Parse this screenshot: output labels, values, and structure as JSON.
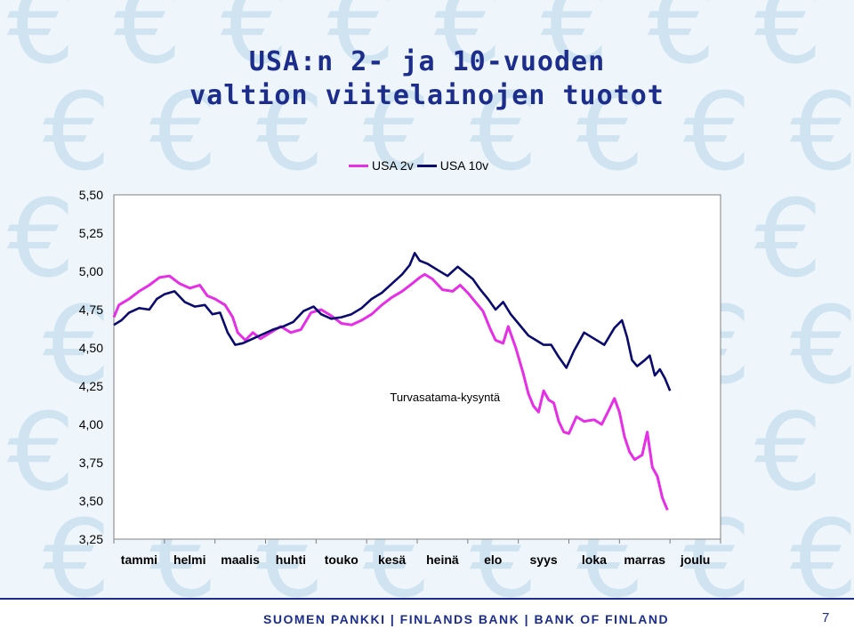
{
  "slide": {
    "title_line_1": "USA:n 2- ja 10-vuoden",
    "title_line_2": "valtion viitelainojen tuotot",
    "footer": "SUOMEN PANKKI | FINLANDS BANK | BANK OF FINLAND",
    "page_number": "7",
    "background_icon": "euro-sign-icon"
  },
  "colors": {
    "title": "#1c2d8c",
    "usa2v": "#e62ee6",
    "usa10v": "#0a0a6e",
    "background": "#eef6fb",
    "euro_pattern": "#cfe3f1"
  },
  "chart_data": {
    "type": "line",
    "title": "",
    "xlabel": "",
    "ylabel": "",
    "ylim": [
      3.25,
      5.5
    ],
    "yticks": [
      "5,50",
      "5,25",
      "5,00",
      "4,75",
      "4,50",
      "4,25",
      "4,00",
      "3,75",
      "3,50",
      "3,25"
    ],
    "ytick_values": [
      5.5,
      5.25,
      5.0,
      4.75,
      4.5,
      4.25,
      4.0,
      3.75,
      3.5,
      3.25
    ],
    "xlim": [
      0,
      12
    ],
    "categories": [
      "tammi",
      "helmi",
      "maalis",
      "huhti",
      "touko",
      "kesä",
      "heinä",
      "elo",
      "syys",
      "loka",
      "marras",
      "joulu"
    ],
    "legend_position": "top",
    "grid": false,
    "annotation": "Turvasatama-kysyntä",
    "series": [
      {
        "name": "USA 2v",
        "points": [
          [
            0.0,
            4.7
          ],
          [
            0.1,
            4.78
          ],
          [
            0.3,
            4.82
          ],
          [
            0.5,
            4.87
          ],
          [
            0.7,
            4.91
          ],
          [
            0.9,
            4.96
          ],
          [
            1.1,
            4.97
          ],
          [
            1.3,
            4.92
          ],
          [
            1.5,
            4.89
          ],
          [
            1.7,
            4.91
          ],
          [
            1.85,
            4.84
          ],
          [
            2.0,
            4.82
          ],
          [
            2.2,
            4.78
          ],
          [
            2.35,
            4.7
          ],
          [
            2.45,
            4.6
          ],
          [
            2.6,
            4.55
          ],
          [
            2.75,
            4.6
          ],
          [
            2.9,
            4.56
          ],
          [
            3.1,
            4.6
          ],
          [
            3.3,
            4.64
          ],
          [
            3.5,
            4.6
          ],
          [
            3.7,
            4.62
          ],
          [
            3.9,
            4.73
          ],
          [
            4.1,
            4.75
          ],
          [
            4.3,
            4.71
          ],
          [
            4.5,
            4.66
          ],
          [
            4.7,
            4.65
          ],
          [
            4.9,
            4.68
          ],
          [
            5.1,
            4.72
          ],
          [
            5.3,
            4.78
          ],
          [
            5.5,
            4.83
          ],
          [
            5.7,
            4.87
          ],
          [
            5.9,
            4.92
          ],
          [
            6.05,
            4.96
          ],
          [
            6.15,
            4.98
          ],
          [
            6.3,
            4.95
          ],
          [
            6.5,
            4.88
          ],
          [
            6.7,
            4.87
          ],
          [
            6.85,
            4.91
          ],
          [
            7.0,
            4.86
          ],
          [
            7.15,
            4.8
          ],
          [
            7.3,
            4.74
          ],
          [
            7.45,
            4.62
          ],
          [
            7.55,
            4.55
          ],
          [
            7.7,
            4.53
          ],
          [
            7.8,
            4.64
          ],
          [
            7.95,
            4.5
          ],
          [
            8.1,
            4.33
          ],
          [
            8.2,
            4.2
          ],
          [
            8.3,
            4.12
          ],
          [
            8.4,
            4.08
          ],
          [
            8.5,
            4.22
          ],
          [
            8.6,
            4.16
          ],
          [
            8.7,
            4.14
          ],
          [
            8.8,
            4.02
          ],
          [
            8.9,
            3.95
          ],
          [
            9.0,
            3.94
          ],
          [
            9.15,
            4.05
          ],
          [
            9.3,
            4.02
          ],
          [
            9.5,
            4.03
          ],
          [
            9.65,
            4.0
          ],
          [
            9.8,
            4.1
          ],
          [
            9.9,
            4.17
          ],
          [
            10.0,
            4.08
          ],
          [
            10.1,
            3.92
          ],
          [
            10.2,
            3.82
          ],
          [
            10.3,
            3.77
          ],
          [
            10.45,
            3.8
          ],
          [
            10.55,
            3.95
          ],
          [
            10.65,
            3.72
          ],
          [
            10.75,
            3.66
          ],
          [
            10.85,
            3.52
          ],
          [
            10.95,
            3.44
          ]
        ]
      },
      {
        "name": "USA 10v",
        "points": [
          [
            0.0,
            4.65
          ],
          [
            0.15,
            4.68
          ],
          [
            0.3,
            4.73
          ],
          [
            0.5,
            4.76
          ],
          [
            0.7,
            4.75
          ],
          [
            0.85,
            4.82
          ],
          [
            1.0,
            4.85
          ],
          [
            1.2,
            4.87
          ],
          [
            1.4,
            4.8
          ],
          [
            1.6,
            4.77
          ],
          [
            1.8,
            4.78
          ],
          [
            1.95,
            4.72
          ],
          [
            2.1,
            4.73
          ],
          [
            2.25,
            4.6
          ],
          [
            2.4,
            4.52
          ],
          [
            2.55,
            4.53
          ],
          [
            2.75,
            4.56
          ],
          [
            2.95,
            4.59
          ],
          [
            3.15,
            4.62
          ],
          [
            3.35,
            4.64
          ],
          [
            3.55,
            4.67
          ],
          [
            3.75,
            4.74
          ],
          [
            3.95,
            4.77
          ],
          [
            4.1,
            4.72
          ],
          [
            4.3,
            4.69
          ],
          [
            4.5,
            4.7
          ],
          [
            4.7,
            4.72
          ],
          [
            4.9,
            4.76
          ],
          [
            5.1,
            4.82
          ],
          [
            5.3,
            4.86
          ],
          [
            5.5,
            4.92
          ],
          [
            5.7,
            4.98
          ],
          [
            5.85,
            5.04
          ],
          [
            5.95,
            5.12
          ],
          [
            6.05,
            5.07
          ],
          [
            6.2,
            5.05
          ],
          [
            6.4,
            5.01
          ],
          [
            6.6,
            4.97
          ],
          [
            6.8,
            5.03
          ],
          [
            6.95,
            4.99
          ],
          [
            7.1,
            4.95
          ],
          [
            7.25,
            4.88
          ],
          [
            7.4,
            4.82
          ],
          [
            7.55,
            4.75
          ],
          [
            7.7,
            4.8
          ],
          [
            7.85,
            4.72
          ],
          [
            8.0,
            4.66
          ],
          [
            8.2,
            4.58
          ],
          [
            8.35,
            4.55
          ],
          [
            8.5,
            4.52
          ],
          [
            8.65,
            4.52
          ],
          [
            8.8,
            4.44
          ],
          [
            8.95,
            4.37
          ],
          [
            9.1,
            4.48
          ],
          [
            9.3,
            4.6
          ],
          [
            9.5,
            4.56
          ],
          [
            9.7,
            4.52
          ],
          [
            9.9,
            4.63
          ],
          [
            10.05,
            4.68
          ],
          [
            10.15,
            4.57
          ],
          [
            10.25,
            4.42
          ],
          [
            10.35,
            4.38
          ],
          [
            10.5,
            4.42
          ],
          [
            10.6,
            4.45
          ],
          [
            10.7,
            4.32
          ],
          [
            10.8,
            4.36
          ],
          [
            10.9,
            4.3
          ],
          [
            11.0,
            4.22
          ]
        ]
      }
    ]
  }
}
